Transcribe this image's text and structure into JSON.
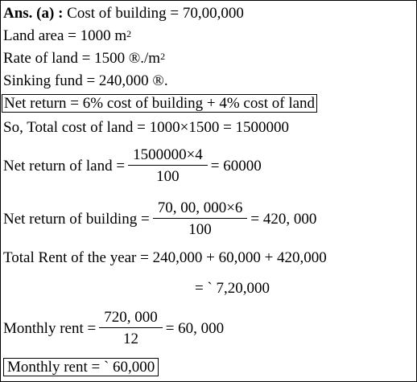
{
  "lines": {
    "l1_prefix": "Ans. (a) :",
    "l1_text": " Cost of building = 70,00,000",
    "l2_text": "Land area = 1000 m",
    "l2_sup": "2",
    "l3_text": "Rate of land = 1500 ®./m",
    "l3_sup": "2",
    "l4_text": "Sinking fund = 240,000 ®.",
    "l5_text": "Net return = 6% cost of building + 4% cost of land",
    "l6_text": "So, Total cost of land = 1000×1500 = 1500000",
    "l7_label": "Net return of land =",
    "l7_num": "1500000×4",
    "l7_den": "100",
    "l7_result": "= 60000",
    "l8_label": "Net return of building =",
    "l8_num": "70, 00, 000×6",
    "l8_den": "100",
    "l8_result": "= 420, 000",
    "l9_text": "Total Rent of the year = 240,000 + 60,000 + 420,000",
    "l10_text": "= ` 7,20,000",
    "l11_label": "Monthly rent =",
    "l11_num": "720, 000",
    "l11_den": "12",
    "l11_result": "= 60, 000",
    "l12_text": "Monthly rent = ` 60,000"
  }
}
